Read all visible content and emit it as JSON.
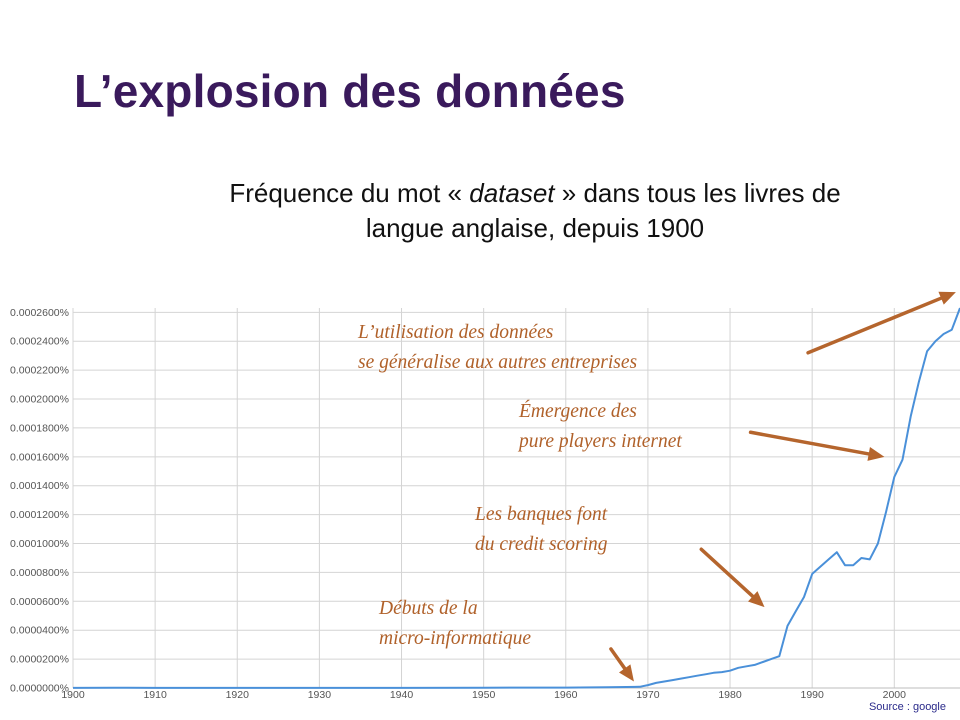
{
  "slide": {
    "title": "L’explosion des données",
    "subtitle_prefix": "Fréquence du mot « ",
    "subtitle_term": "dataset",
    "subtitle_suffix": " » dans tous les livres de",
    "subtitle_line2": "langue anglaise, depuis 1900",
    "source": "Source : google"
  },
  "colors": {
    "title": "#3a1a5c",
    "line": "#4a90d9",
    "annotation": "#b0612a",
    "arrow": "#b5652d",
    "grid": "#d4d4d4"
  },
  "annotations": [
    {
      "line1": "L’utilisation des données",
      "line2": "se généralise aux autres entreprises"
    },
    {
      "line1": "Émergence des",
      "line2": "pure players internet"
    },
    {
      "line1": "Les banques font",
      "line2": "du credit scoring"
    },
    {
      "line1": "Débuts de la",
      "line2": "micro-informatique"
    }
  ],
  "chart_data": {
    "type": "line",
    "title": "",
    "xlabel": "",
    "ylabel": "",
    "xlim": [
      1900,
      2008
    ],
    "ylim": [
      0,
      0.000263
    ],
    "grid": true,
    "x_ticks": [
      1900,
      1910,
      1920,
      1930,
      1940,
      1950,
      1960,
      1970,
      1980,
      1990,
      2000
    ],
    "y_ticks": [
      {
        "value": 0.0,
        "label": "0.0000000%"
      },
      {
        "value": 2e-05,
        "label": "0.0000200%"
      },
      {
        "value": 4e-05,
        "label": "0.0000400%"
      },
      {
        "value": 6e-05,
        "label": "0.0000600%"
      },
      {
        "value": 8e-05,
        "label": "0.0000800%"
      },
      {
        "value": 0.0001,
        "label": "0.0001000%"
      },
      {
        "value": 0.00012,
        "label": "0.0001200%"
      },
      {
        "value": 0.00014,
        "label": "0.0001400%"
      },
      {
        "value": 0.00016,
        "label": "0.0001600%"
      },
      {
        "value": 0.00018,
        "label": "0.0001800%"
      },
      {
        "value": 0.0002,
        "label": "0.0002000%"
      },
      {
        "value": 0.00022,
        "label": "0.0002200%"
      },
      {
        "value": 0.00024,
        "label": "0.0002400%"
      },
      {
        "value": 0.00026,
        "label": "0.0002600%"
      }
    ],
    "series": [
      {
        "x": [
          1900,
          1905,
          1910,
          1915,
          1920,
          1930,
          1940,
          1950,
          1960,
          1965,
          1969,
          1970,
          1971,
          1972,
          1973,
          1974,
          1975,
          1976,
          1977,
          1978,
          1979,
          1980,
          1981,
          1982,
          1983,
          1984,
          1985,
          1986,
          1987,
          1988,
          1989,
          1990,
          1991,
          1992,
          1993,
          1994,
          1995,
          1996,
          1997,
          1998,
          1999,
          2000,
          2001,
          2002,
          2003,
          2004,
          2005,
          2006,
          2007,
          2008
        ],
        "y": [
          1e-07,
          2e-07,
          1e-07,
          1e-07,
          1e-07,
          1e-07,
          1e-07,
          2e-07,
          3e-07,
          5e-07,
          8e-07,
          2e-06,
          3.5e-06,
          4.5e-06,
          5.5e-06,
          6.5e-06,
          7.5e-06,
          8.5e-06,
          9.5e-06,
          1.05e-05,
          1.1e-05,
          1.2e-05,
          1.4e-05,
          1.5e-05,
          1.6e-05,
          1.8e-05,
          2e-05,
          2.2e-05,
          4.3e-05,
          5.3e-05,
          6.3e-05,
          7.9e-05,
          8.4e-05,
          8.9e-05,
          9.4e-05,
          8.5e-05,
          8.5e-05,
          9e-05,
          8.9e-05,
          0.0001,
          0.000122,
          0.000146,
          0.000158,
          0.000188,
          0.000212,
          0.000233,
          0.00024,
          0.000245,
          0.000248,
          0.000263
        ]
      }
    ],
    "arrows": [
      {
        "x1": 1989.5,
        "y1": 0.000232,
        "x2": 2007.5,
        "y2": 0.000274
      },
      {
        "x1": 1982.5,
        "y1": 0.000177,
        "x2": 1998.8,
        "y2": 0.00016
      },
      {
        "x1": 1976.5,
        "y1": 9.6e-05,
        "x2": 1984.2,
        "y2": 5.6e-05
      },
      {
        "x1": 1965.5,
        "y1": 2.7e-05,
        "x2": 1968.3,
        "y2": 4.5e-06
      }
    ]
  }
}
